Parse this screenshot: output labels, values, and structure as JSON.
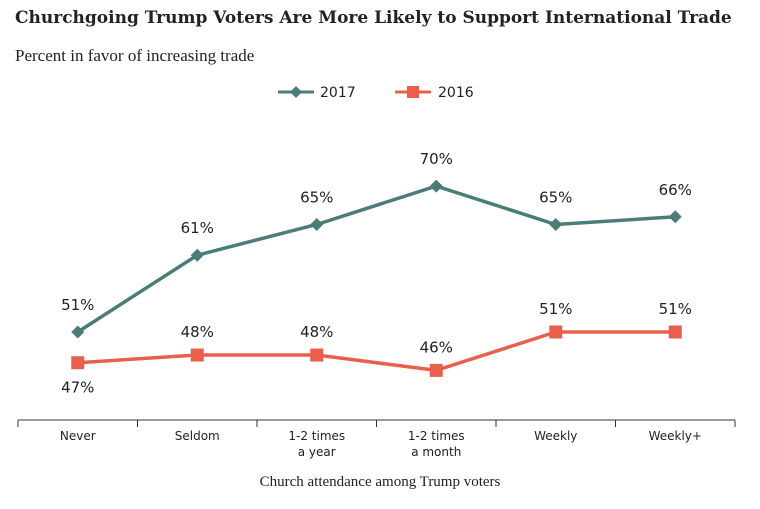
{
  "chart_data": {
    "type": "line",
    "title": "Churchgoing Trump Voters Are More Likely to Support International Trade",
    "subtitle": "Percent in favor of increasing trade",
    "xlabel": "Church attendance among Trump voters",
    "ylabel": "",
    "categories": [
      [
        "Never"
      ],
      [
        "Seldom"
      ],
      [
        "1-2 times",
        "a year"
      ],
      [
        "1-2 times",
        "a month"
      ],
      [
        "Weekly"
      ],
      [
        "Weekly+"
      ]
    ],
    "ylim": [
      40,
      80
    ],
    "grid": false,
    "legend_position": "top-center",
    "series": [
      {
        "name": "2017",
        "color": "#4a7c78",
        "marker": "diamond",
        "values": [
          51,
          61,
          65,
          70,
          65,
          66
        ],
        "labels": [
          "51%",
          "61%",
          "65%",
          "70%",
          "65%",
          "66%"
        ]
      },
      {
        "name": "2016",
        "color": "#e8604c",
        "marker": "square",
        "values": [
          47,
          48,
          48,
          46,
          51,
          51
        ],
        "labels": [
          "47%",
          "48%",
          "48%",
          "46%",
          "51%",
          "51%"
        ]
      }
    ]
  }
}
